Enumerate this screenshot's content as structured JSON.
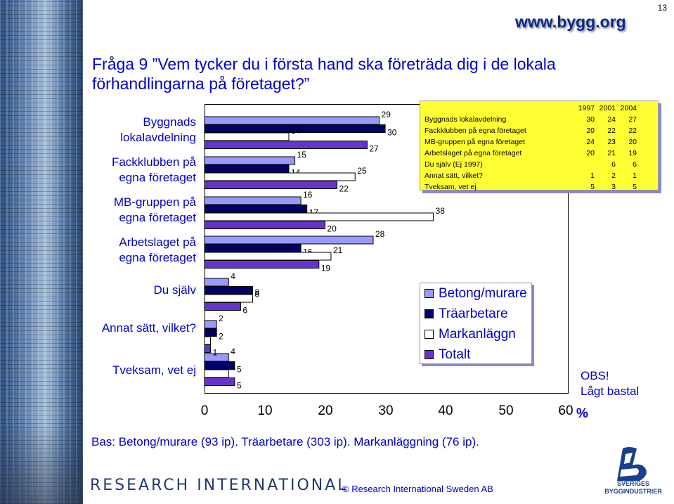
{
  "page_number": "13",
  "site_url": "www.bygg.org",
  "question": "Fråga 9 ”Vem tycker du i första hand ska företräda dig i de lokala förhandlingarna på företaget?”",
  "categories": [
    {
      "line1": "Byggnads",
      "line2": "lokalavdelning"
    },
    {
      "line1": "Fackklubben på",
      "line2": "egna företaget"
    },
    {
      "line1": "MB-gruppen på",
      "line2": "egna företaget"
    },
    {
      "line1": "Arbetslaget på",
      "line2": "egna företaget"
    },
    {
      "line1": "Du själv",
      "line2": ""
    },
    {
      "line1": "Annat sätt, vilket?",
      "line2": ""
    },
    {
      "line1": "Tveksam, vet ej",
      "line2": ""
    }
  ],
  "x_ticks": [
    "0",
    "10",
    "20",
    "30",
    "40",
    "50",
    "60"
  ],
  "x_unit": "%",
  "trend_table": {
    "headers": [
      "",
      "1997",
      "2001",
      "2004"
    ],
    "rows": [
      [
        "Byggnads lokalavdelning",
        "30",
        "24",
        "27"
      ],
      [
        "Fackklubben på egna företaget",
        "20",
        "22",
        "22"
      ],
      [
        "MB-gruppen på egna företaget",
        "24",
        "23",
        "20"
      ],
      [
        "Arbetslaget på egna företaget",
        "20",
        "21",
        "19"
      ],
      [
        "Du själv (Ej 1997)",
        "",
        "6",
        "6"
      ],
      [
        "Annat sätt, vilket?",
        "1",
        "2",
        "1"
      ],
      [
        "Tveksam, vet ej",
        "5",
        "3",
        "5"
      ]
    ]
  },
  "legend": [
    {
      "label": "Betong/murare",
      "color": "#9999ff"
    },
    {
      "label": "Träarbetare",
      "color": "#000066"
    },
    {
      "label": "Markanläggn",
      "color": "#ffffff"
    },
    {
      "label": "Totalt",
      "color": "#6633cc"
    }
  ],
  "obs": {
    "line1": "OBS!",
    "line2": "Lågt bastal"
  },
  "footnote": "Bas: Betong/murare (93 ip). Träarbetare (303 ip). Markanläggning (76 ip).",
  "logo_text": "RESEARCH INTERNATIONAL",
  "copyright": "© Research International Sweden AB",
  "sb_logo_text": {
    "line1": "SVERIGES",
    "line2": "BYGGINDUSTRIER"
  },
  "chart_data": {
    "type": "bar",
    "orientation": "horizontal",
    "categories": [
      "Byggnads lokalavdelning",
      "Fackklubben på egna företaget",
      "MB-gruppen på egna företaget",
      "Arbetslaget på egna företaget",
      "Du själv",
      "Annat sätt, vilket?",
      "Tveksam, vet ej"
    ],
    "series": [
      {
        "name": "Betong/murare",
        "color": "#9999ff",
        "values": [
          29,
          15,
          16,
          28,
          4,
          2,
          4
        ]
      },
      {
        "name": "Träarbetare",
        "color": "#000066",
        "values": [
          30,
          14,
          17,
          16,
          8,
          2,
          5
        ]
      },
      {
        "name": "Markanläggn",
        "color": "#ffffff",
        "values": [
          14,
          25,
          38,
          21,
          8,
          1,
          4
        ]
      },
      {
        "name": "Totalt",
        "color": "#6633cc",
        "values": [
          27,
          22,
          20,
          19,
          6,
          1,
          5
        ]
      }
    ],
    "value_labels": [
      [
        "29",
        "30",
        "14",
        "27"
      ],
      [
        "15",
        "14",
        "25",
        "22"
      ],
      [
        "16",
        "17",
        "38",
        "20"
      ],
      [
        "28",
        "16",
        "21",
        "19"
      ],
      [
        "4",
        "8",
        "8",
        "6"
      ],
      [
        "2",
        "2",
        "",
        "1"
      ],
      [
        "4",
        "5",
        "4",
        "5"
      ]
    ],
    "xlim": [
      0,
      60
    ],
    "x_ticks": [
      0,
      10,
      20,
      30,
      40,
      50,
      60
    ],
    "xlabel": "%",
    "legend_position": "right"
  }
}
